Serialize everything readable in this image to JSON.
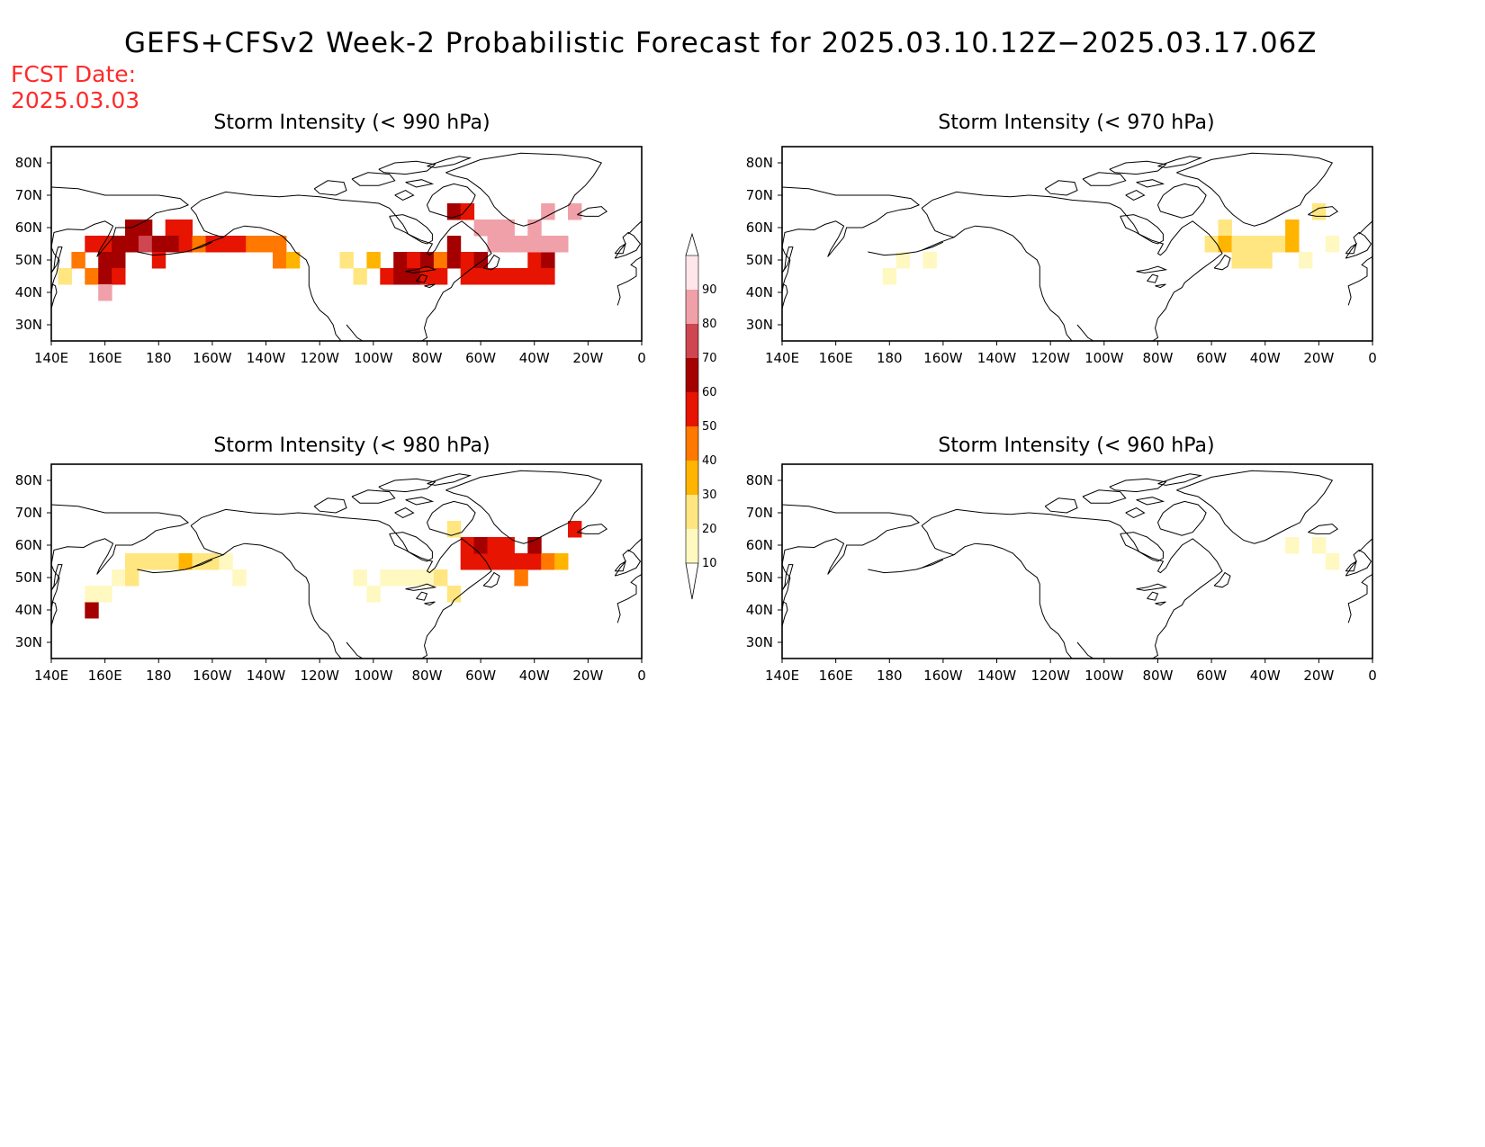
{
  "title": "GEFS+CFSv2 Week-2 Probabilistic Forecast for 2025.03.10.12Z−2025.03.17.06Z",
  "fcst_date_label": "FCST Date:",
  "fcst_date": "2025.03.03",
  "axes": {
    "lon_labels": [
      "140E",
      "160E",
      "180",
      "160W",
      "140W",
      "120W",
      "100W",
      "80W",
      "60W",
      "40W",
      "20W",
      "0"
    ],
    "lat_labels": [
      "80N",
      "70N",
      "60N",
      "50N",
      "40N",
      "30N"
    ],
    "lon_range": [
      140,
      360
    ],
    "lat_range": [
      25,
      85
    ]
  },
  "colorbar": {
    "levels": [
      "10",
      "20",
      "30",
      "40",
      "50",
      "60",
      "70",
      "80",
      "90"
    ],
    "colors": [
      "#fff8c0",
      "#ffe680",
      "#ffb400",
      "#ff7800",
      "#e61400",
      "#a50000",
      "#cd4650",
      "#f0a0a8",
      "#ffe6ea"
    ]
  },
  "panels": [
    {
      "id": "p990",
      "title": "Storm Intensity (< 990 hPa)",
      "cells": [
        [
          145,
          45,
          2
        ],
        [
          150,
          50,
          4
        ],
        [
          155,
          45,
          4
        ],
        [
          155,
          55,
          5
        ],
        [
          160,
          55,
          5
        ],
        [
          160,
          50,
          6
        ],
        [
          160,
          45,
          6
        ],
        [
          160,
          40,
          8
        ],
        [
          165,
          55,
          6
        ],
        [
          165,
          50,
          6
        ],
        [
          165,
          45,
          5
        ],
        [
          170,
          60,
          6
        ],
        [
          170,
          55,
          6
        ],
        [
          175,
          60,
          6
        ],
        [
          175,
          55,
          7
        ],
        [
          180,
          55,
          6
        ],
        [
          180,
          50,
          5
        ],
        [
          185,
          60,
          5
        ],
        [
          185,
          55,
          6
        ],
        [
          190,
          60,
          5
        ],
        [
          190,
          55,
          5
        ],
        [
          195,
          55,
          4
        ],
        [
          200,
          55,
          5
        ],
        [
          205,
          55,
          5
        ],
        [
          210,
          55,
          5
        ],
        [
          215,
          55,
          4
        ],
        [
          220,
          55,
          4
        ],
        [
          225,
          55,
          4
        ],
        [
          225,
          50,
          4
        ],
        [
          230,
          50,
          3
        ],
        [
          250,
          50,
          2
        ],
        [
          255,
          45,
          2
        ],
        [
          260,
          50,
          3
        ],
        [
          265,
          45,
          5
        ],
        [
          270,
          50,
          6
        ],
        [
          270,
          45,
          6
        ],
        [
          275,
          50,
          5
        ],
        [
          275,
          45,
          6
        ],
        [
          280,
          50,
          6
        ],
        [
          280,
          45,
          5
        ],
        [
          285,
          50,
          4
        ],
        [
          285,
          45,
          5
        ],
        [
          290,
          55,
          6
        ],
        [
          290,
          50,
          6
        ],
        [
          295,
          50,
          5
        ],
        [
          295,
          45,
          5
        ],
        [
          300,
          50,
          6
        ],
        [
          300,
          45,
          5
        ],
        [
          305,
          45,
          5
        ],
        [
          310,
          45,
          5
        ],
        [
          315,
          45,
          5
        ],
        [
          320,
          50,
          5
        ],
        [
          320,
          45,
          5
        ],
        [
          325,
          50,
          6
        ],
        [
          325,
          45,
          5
        ],
        [
          290,
          65,
          6
        ],
        [
          295,
          65,
          5
        ],
        [
          300,
          60,
          8
        ],
        [
          305,
          60,
          8
        ],
        [
          305,
          55,
          8
        ],
        [
          310,
          60,
          8
        ],
        [
          310,
          55,
          8
        ],
        [
          315,
          55,
          8
        ],
        [
          320,
          60,
          8
        ],
        [
          320,
          55,
          8
        ],
        [
          325,
          65,
          8
        ],
        [
          325,
          55,
          8
        ],
        [
          330,
          55,
          8
        ],
        [
          335,
          65,
          8
        ]
      ]
    },
    {
      "id": "p970",
      "title": "Storm Intensity (< 970 hPa)",
      "cells": [
        [
          180,
          45,
          1
        ],
        [
          185,
          50,
          1
        ],
        [
          195,
          50,
          1
        ],
        [
          300,
          55,
          2
        ],
        [
          305,
          60,
          2
        ],
        [
          305,
          55,
          3
        ],
        [
          310,
          55,
          2
        ],
        [
          310,
          50,
          2
        ],
        [
          315,
          55,
          2
        ],
        [
          315,
          50,
          2
        ],
        [
          320,
          55,
          2
        ],
        [
          320,
          50,
          2
        ],
        [
          325,
          55,
          2
        ],
        [
          330,
          55,
          3
        ],
        [
          330,
          60,
          3
        ],
        [
          335,
          50,
          1
        ],
        [
          340,
          65,
          2
        ],
        [
          345,
          55,
          1
        ]
      ]
    },
    {
      "id": "p980",
      "title": "Storm Intensity (< 980 hPa)",
      "cells": [
        [
          155,
          40,
          6
        ],
        [
          155,
          45,
          1
        ],
        [
          160,
          45,
          1
        ],
        [
          165,
          50,
          1
        ],
        [
          170,
          50,
          2
        ],
        [
          170,
          55,
          2
        ],
        [
          175,
          55,
          2
        ],
        [
          180,
          55,
          2
        ],
        [
          185,
          55,
          2
        ],
        [
          190,
          55,
          3
        ],
        [
          195,
          55,
          2
        ],
        [
          200,
          55,
          2
        ],
        [
          205,
          55,
          1
        ],
        [
          210,
          50,
          1
        ],
        [
          255,
          50,
          1
        ],
        [
          260,
          45,
          1
        ],
        [
          265,
          50,
          1
        ],
        [
          270,
          50,
          1
        ],
        [
          275,
          50,
          1
        ],
        [
          280,
          50,
          1
        ],
        [
          285,
          50,
          2
        ],
        [
          290,
          45,
          2
        ],
        [
          290,
          65,
          2
        ],
        [
          295,
          55,
          5
        ],
        [
          295,
          60,
          5
        ],
        [
          300,
          55,
          5
        ],
        [
          300,
          60,
          6
        ],
        [
          305,
          55,
          5
        ],
        [
          305,
          60,
          5
        ],
        [
          310,
          55,
          5
        ],
        [
          310,
          60,
          5
        ],
        [
          315,
          55,
          5
        ],
        [
          315,
          50,
          4
        ],
        [
          320,
          55,
          5
        ],
        [
          320,
          60,
          6
        ],
        [
          325,
          55,
          4
        ],
        [
          330,
          55,
          3
        ],
        [
          335,
          65,
          5
        ]
      ]
    },
    {
      "id": "p960",
      "title": "Storm Intensity (< 960 hPa)",
      "cells": [
        [
          330,
          60,
          1
        ],
        [
          340,
          60,
          1
        ],
        [
          345,
          55,
          1
        ]
      ]
    }
  ]
}
